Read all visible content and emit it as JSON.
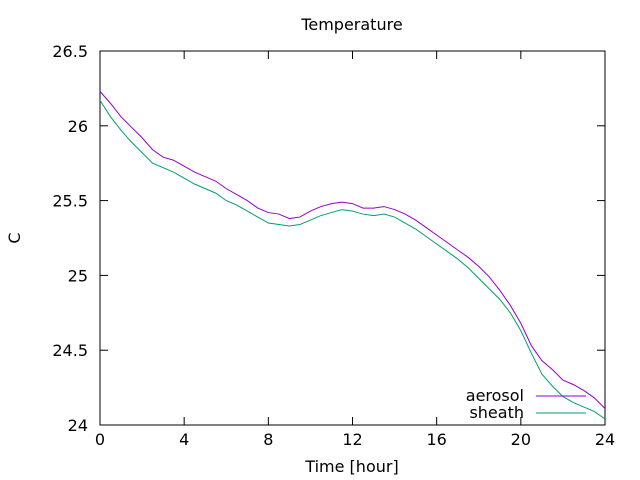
{
  "chart_data": {
    "type": "line",
    "title": "Temperature",
    "xlabel": "Time [hour]",
    "ylabel": "C",
    "xlim": [
      0,
      24
    ],
    "ylim": [
      24,
      26.5
    ],
    "xticks": [
      0,
      4,
      8,
      12,
      16,
      20,
      24
    ],
    "yticks": [
      24,
      24.5,
      25,
      25.5,
      26,
      26.5
    ],
    "legend_position": "bottom-right",
    "grid": false,
    "series": [
      {
        "name": "aerosol",
        "color": "#9400d3",
        "x": [
          0,
          0.5,
          1,
          1.5,
          2,
          2.5,
          3,
          3.5,
          4,
          4.5,
          5,
          5.5,
          6,
          6.5,
          7,
          7.5,
          8,
          8.5,
          9,
          9.5,
          10,
          10.5,
          11,
          11.5,
          12,
          12.5,
          13,
          13.5,
          14,
          14.5,
          15,
          15.5,
          16,
          16.5,
          17,
          17.5,
          18,
          18.5,
          19,
          19.5,
          20,
          20.5,
          21,
          21.5,
          22,
          22.5,
          23,
          23.5,
          24
        ],
        "y": [
          26.23,
          26.15,
          26.06,
          25.99,
          25.92,
          25.84,
          25.79,
          25.77,
          25.73,
          25.69,
          25.66,
          25.63,
          25.58,
          25.54,
          25.5,
          25.45,
          25.42,
          25.41,
          25.38,
          25.39,
          25.43,
          25.46,
          25.48,
          25.49,
          25.48,
          25.45,
          25.45,
          25.46,
          25.44,
          25.41,
          25.37,
          25.32,
          25.27,
          25.22,
          25.17,
          25.12,
          25.06,
          24.99,
          24.9,
          24.8,
          24.68,
          24.53,
          24.43,
          24.37,
          24.3,
          24.27,
          24.23,
          24.18,
          24.11
        ]
      },
      {
        "name": "sheath",
        "color": "#009e73",
        "x": [
          0,
          0.5,
          1,
          1.5,
          2,
          2.5,
          3,
          3.5,
          4,
          4.5,
          5,
          5.5,
          6,
          6.5,
          7,
          7.5,
          8,
          8.5,
          9,
          9.5,
          10,
          10.5,
          11,
          11.5,
          12,
          12.5,
          13,
          13.5,
          14,
          14.5,
          15,
          15.5,
          16,
          16.5,
          17,
          17.5,
          18,
          18.5,
          19,
          19.5,
          20,
          20.5,
          21,
          21.5,
          22,
          22.5,
          23,
          23.5,
          24
        ],
        "y": [
          26.17,
          26.06,
          25.97,
          25.89,
          25.82,
          25.75,
          25.72,
          25.69,
          25.65,
          25.61,
          25.58,
          25.55,
          25.5,
          25.47,
          25.43,
          25.39,
          25.35,
          25.34,
          25.33,
          25.34,
          25.37,
          25.4,
          25.42,
          25.44,
          25.43,
          25.41,
          25.4,
          25.41,
          25.39,
          25.35,
          25.31,
          25.26,
          25.21,
          25.16,
          25.11,
          25.05,
          24.98,
          24.91,
          24.84,
          24.75,
          24.63,
          24.48,
          24.34,
          24.26,
          24.19,
          24.15,
          24.12,
          24.09,
          24.04
        ]
      }
    ]
  }
}
